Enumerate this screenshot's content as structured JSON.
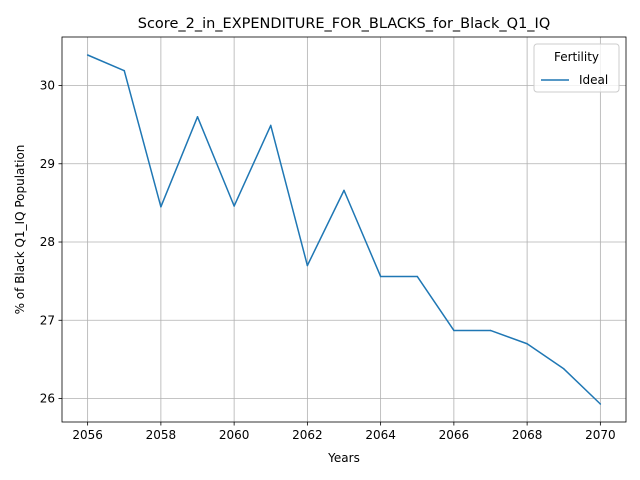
{
  "chart_data": {
    "type": "line",
    "title": "Score_2_in_EXPENDITURE_FOR_BLACKS_for_Black_Q1_IQ",
    "xlabel": "Years",
    "ylabel": "% of Black Q1_IQ Population",
    "xlim": [
      2055.3,
      2070.7
    ],
    "ylim": [
      25.7,
      30.62
    ],
    "xticks": [
      2056,
      2058,
      2060,
      2062,
      2064,
      2066,
      2068,
      2070
    ],
    "yticks": [
      26,
      27,
      28,
      29,
      30
    ],
    "grid": true,
    "legend": {
      "title": "Fertility",
      "placement": "top-right"
    },
    "x": [
      2056,
      2057,
      2058,
      2059,
      2060,
      2061,
      2062,
      2063,
      2064,
      2065,
      2066,
      2067,
      2068,
      2069,
      2070
    ],
    "series": [
      {
        "name": "Ideal",
        "color": "#1f77b4",
        "values": [
          30.39,
          30.19,
          28.45,
          29.6,
          28.46,
          29.49,
          27.7,
          28.66,
          27.56,
          27.56,
          26.87,
          26.87,
          26.7,
          26.38,
          25.93
        ]
      }
    ]
  }
}
